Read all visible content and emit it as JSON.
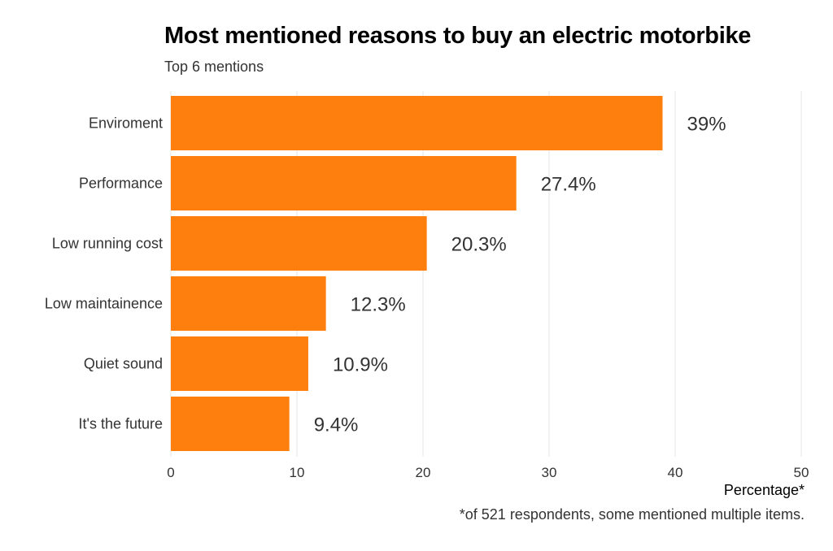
{
  "chart_data": {
    "type": "bar",
    "orientation": "horizontal",
    "title": "Most mentioned reasons to buy an electric motorbike",
    "subtitle": "Top 6 mentions",
    "categories": [
      "Enviroment",
      "Performance",
      "Low running cost",
      "Low maintainence",
      "Quiet sound",
      "It's the future"
    ],
    "values": [
      39,
      27.4,
      20.3,
      12.3,
      10.9,
      9.4
    ],
    "value_labels": [
      "39%",
      "27.4%",
      "20.3%",
      "12.3%",
      "10.9%",
      "9.4%"
    ],
    "xlabel": "Percentage*",
    "ylabel": "",
    "xlim": [
      0,
      50
    ],
    "xticks": [
      0,
      10,
      20,
      30,
      40,
      50
    ],
    "xtick_labels": [
      "0",
      "10",
      "20",
      "30",
      "40",
      "50"
    ],
    "grid": true,
    "bar_color": "#FF7F0E",
    "caption": "*of 521 respondents, some mentioned multiple items."
  }
}
